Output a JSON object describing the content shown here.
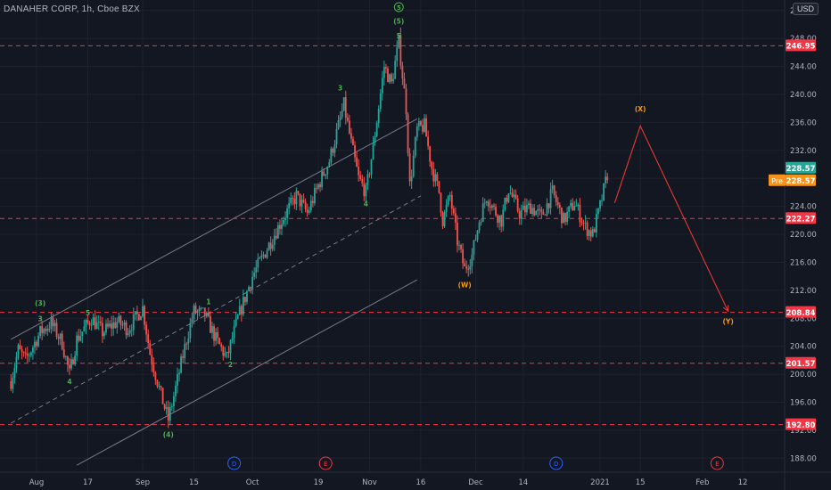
{
  "chart_data": {
    "type": "candlestick",
    "title": "DANAHER CORP, 1h, Cboe BZX",
    "currency": "USD",
    "ylim": [
      186.0,
      253.5
    ],
    "y_ticks": [
      188.0,
      192.0,
      196.0,
      200.0,
      204.0,
      208.0,
      212.0,
      216.0,
      220.0,
      224.0,
      228.0,
      232.0,
      236.0,
      240.0,
      244.0,
      248.0,
      252.0
    ],
    "x_ticks": [
      {
        "label": "Aug",
        "date": "2020-08-03"
      },
      {
        "label": "17",
        "date": "2020-08-17"
      },
      {
        "label": "Sep",
        "date": "2020-09-01"
      },
      {
        "label": "15",
        "date": "2020-09-15"
      },
      {
        "label": "Oct",
        "date": "2020-10-01"
      },
      {
        "label": "19",
        "date": "2020-10-19"
      },
      {
        "label": "Nov",
        "date": "2020-11-02"
      },
      {
        "label": "16",
        "date": "2020-11-16"
      },
      {
        "label": "Dec",
        "date": "2020-12-01"
      },
      {
        "label": "14",
        "date": "2020-12-14"
      },
      {
        "label": "2021",
        "date": "2021-01-04"
      },
      {
        "label": "15",
        "date": "2021-01-15"
      },
      {
        "label": "Feb",
        "date": "2021-02-01"
      },
      {
        "label": "12",
        "date": "2021-02-12"
      }
    ],
    "price_path": [
      {
        "date": "2020-07-27",
        "price": 199.0
      },
      {
        "date": "2020-07-29",
        "price": 203.5
      },
      {
        "date": "2020-07-31",
        "price": 202.0
      },
      {
        "date": "2020-08-04",
        "price": 206.0
      },
      {
        "date": "2020-08-07",
        "price": 207.3
      },
      {
        "date": "2020-08-10",
        "price": 204.5
      },
      {
        "date": "2020-08-12",
        "price": 200.0
      },
      {
        "date": "2020-08-14",
        "price": 205.0
      },
      {
        "date": "2020-08-18",
        "price": 208.0
      },
      {
        "date": "2020-08-21",
        "price": 206.0
      },
      {
        "date": "2020-08-25",
        "price": 207.5
      },
      {
        "date": "2020-08-28",
        "price": 206.5
      },
      {
        "date": "2020-09-01",
        "price": 209.5
      },
      {
        "date": "2020-09-03",
        "price": 203.0
      },
      {
        "date": "2020-09-06",
        "price": 197.0
      },
      {
        "date": "2020-09-08",
        "price": 193.5
      },
      {
        "date": "2020-09-10",
        "price": 198.0
      },
      {
        "date": "2020-09-13",
        "price": 205.0
      },
      {
        "date": "2020-09-15",
        "price": 209.0
      },
      {
        "date": "2020-09-18",
        "price": 208.5
      },
      {
        "date": "2020-09-21",
        "price": 205.0
      },
      {
        "date": "2020-09-24",
        "price": 202.3
      },
      {
        "date": "2020-09-27",
        "price": 208.0
      },
      {
        "date": "2020-10-01",
        "price": 214.0
      },
      {
        "date": "2020-10-05",
        "price": 218.0
      },
      {
        "date": "2020-10-09",
        "price": 222.0
      },
      {
        "date": "2020-10-13",
        "price": 225.5
      },
      {
        "date": "2020-10-16",
        "price": 223.0
      },
      {
        "date": "2020-10-19",
        "price": 227.0
      },
      {
        "date": "2020-10-22",
        "price": 230.5
      },
      {
        "date": "2020-10-26",
        "price": 238.5
      },
      {
        "date": "2020-10-28",
        "price": 233.0
      },
      {
        "date": "2020-10-30",
        "price": 228.0
      },
      {
        "date": "2020-11-01",
        "price": 226.0
      },
      {
        "date": "2020-11-03",
        "price": 232.5
      },
      {
        "date": "2020-11-06",
        "price": 244.0
      },
      {
        "date": "2020-11-08",
        "price": 241.5
      },
      {
        "date": "2020-11-10",
        "price": 247.5
      },
      {
        "date": "2020-11-12",
        "price": 238.0
      },
      {
        "date": "2020-11-13",
        "price": 227.0
      },
      {
        "date": "2020-11-15",
        "price": 235.0
      },
      {
        "date": "2020-11-17",
        "price": 235.5
      },
      {
        "date": "2020-11-19",
        "price": 229.5
      },
      {
        "date": "2020-11-21",
        "price": 226.0
      },
      {
        "date": "2020-11-22",
        "price": 222.0
      },
      {
        "date": "2020-11-24",
        "price": 225.5
      },
      {
        "date": "2020-11-26",
        "price": 219.0
      },
      {
        "date": "2020-11-28",
        "price": 215.0
      },
      {
        "date": "2020-11-30",
        "price": 217.0
      },
      {
        "date": "2020-12-02",
        "price": 222.0
      },
      {
        "date": "2020-12-04",
        "price": 225.5
      },
      {
        "date": "2020-12-06",
        "price": 223.5
      },
      {
        "date": "2020-12-08",
        "price": 222.0
      },
      {
        "date": "2020-12-10",
        "price": 226.5
      },
      {
        "date": "2020-12-13",
        "price": 223.0
      },
      {
        "date": "2020-12-16",
        "price": 224.0
      },
      {
        "date": "2020-12-19",
        "price": 222.5
      },
      {
        "date": "2020-12-22",
        "price": 226.0
      },
      {
        "date": "2020-12-25",
        "price": 222.0
      },
      {
        "date": "2020-12-28",
        "price": 224.5
      },
      {
        "date": "2020-12-31",
        "price": 221.0
      },
      {
        "date": "2021-01-02",
        "price": 220.0
      },
      {
        "date": "2021-01-04",
        "price": 224.0
      },
      {
        "date": "2021-01-06",
        "price": 228.6
      }
    ],
    "horizontal_levels": [
      {
        "price": 246.95,
        "label": "246.95"
      },
      {
        "price": 222.27,
        "label": "222.27"
      },
      {
        "price": 208.84,
        "label": "208.84"
      },
      {
        "price": 201.57,
        "label": "201.57"
      },
      {
        "price": 192.8,
        "label": "192.80"
      }
    ],
    "price_tags": [
      {
        "price": 228.57,
        "label": "228.57",
        "color": "#26a69a"
      },
      {
        "price": 228.57,
        "prefix": "Pre",
        "label": "228.57",
        "color": "#f7931a"
      }
    ],
    "channel_lines": [
      {
        "style": "solid",
        "points": [
          {
            "date": "2020-07-27",
            "price": 205.0
          },
          {
            "date": "2020-11-15",
            "price": 236.5
          }
        ]
      },
      {
        "style": "dashed",
        "points": [
          {
            "date": "2020-07-27",
            "price": 193.0
          },
          {
            "date": "2020-11-16",
            "price": 225.5
          }
        ]
      },
      {
        "style": "solid",
        "points": [
          {
            "date": "2020-08-14",
            "price": 187.0
          },
          {
            "date": "2020-11-15",
            "price": 213.5
          }
        ]
      }
    ],
    "projection": [
      {
        "date": "2021-01-08",
        "price": 224.5
      },
      {
        "date": "2021-01-15",
        "price": 235.5
      },
      {
        "date": "2021-02-08",
        "price": 209.0
      }
    ],
    "wave_labels": [
      {
        "text": "(3)",
        "date": "2020-08-04",
        "price": 209.8,
        "color": "#4caf50"
      },
      {
        "text": "3",
        "date": "2020-08-04",
        "price": 207.6,
        "color": "#4caf50"
      },
      {
        "text": "4",
        "date": "2020-08-12",
        "price": 198.6,
        "color": "#4caf50"
      },
      {
        "text": "5",
        "date": "2020-08-17",
        "price": 208.4,
        "color": "#4caf50"
      },
      {
        "text": "1",
        "date": "2020-09-19",
        "price": 210.0,
        "color": "#4caf50"
      },
      {
        "text": "(4)",
        "date": "2020-09-08",
        "price": 191.0,
        "color": "#4caf50"
      },
      {
        "text": "2",
        "date": "2020-09-25",
        "price": 201.0,
        "color": "#4caf50"
      },
      {
        "text": "3",
        "date": "2020-10-25",
        "price": 240.6,
        "color": "#4caf50"
      },
      {
        "text": "4",
        "date": "2020-11-01",
        "price": 224.0,
        "color": "#4caf50"
      },
      {
        "text": "5",
        "date": "2020-11-10",
        "price": 248.0,
        "color": "#4caf50"
      },
      {
        "text": "(5)",
        "date": "2020-11-10",
        "price": 250.1,
        "color": "#4caf50"
      },
      {
        "text": "5",
        "date": "2020-11-10",
        "price": 252.1,
        "color": "#4caf50",
        "circled": true
      },
      {
        "text": "(W)",
        "date": "2020-11-28",
        "price": 212.4,
        "color": "#ff9800"
      },
      {
        "text": "(X)",
        "date": "2021-01-15",
        "price": 237.6,
        "color": "#ff9800"
      },
      {
        "text": "(Y)",
        "date": "2021-02-08",
        "price": 207.2,
        "color": "#ff9800"
      }
    ],
    "event_markers": [
      {
        "text": "D",
        "date": "2020-09-26",
        "color": "#2962ff"
      },
      {
        "text": "E",
        "date": "2020-10-21",
        "color": "#f23645"
      },
      {
        "text": "D",
        "date": "2020-12-23",
        "color": "#2962ff"
      },
      {
        "text": "E",
        "date": "2021-02-05",
        "color": "#f23645"
      }
    ]
  },
  "header": {
    "title": "DANAHER CORP, 1h, Cboe BZX",
    "currency": "USD"
  },
  "colors": {
    "background": "#131722",
    "grid": "#1e222d",
    "axis_text": "#b2b5be",
    "up": "#26a69a",
    "down": "#ef5350",
    "level": "#f23645",
    "channel": "#787b86",
    "projection": "#e53935"
  }
}
